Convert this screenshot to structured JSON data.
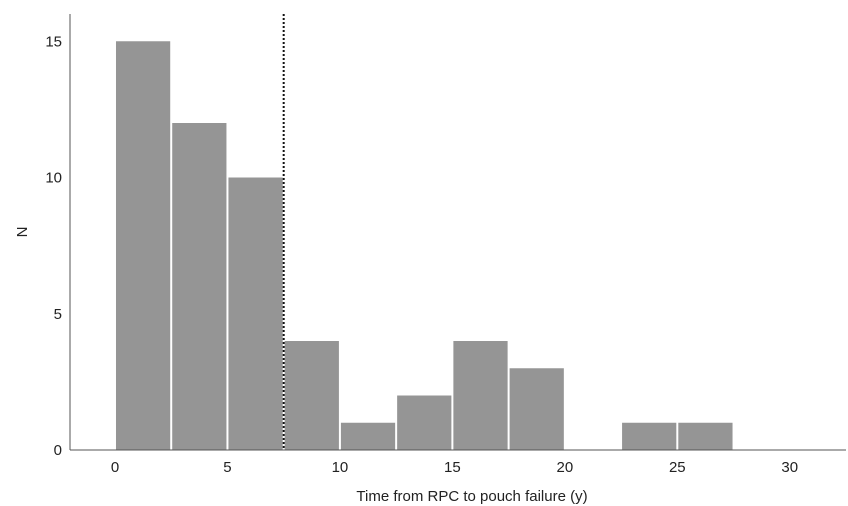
{
  "chart_data": {
    "type": "bar",
    "subtype": "histogram",
    "title": "",
    "xlabel": "Time from RPC to pouch failure (y)",
    "ylabel": "N",
    "bin_width": 2.5,
    "bins": [
      {
        "start": 0,
        "end": 2.5,
        "count": 15
      },
      {
        "start": 2.5,
        "end": 5,
        "count": 12
      },
      {
        "start": 5,
        "end": 7.5,
        "count": 10
      },
      {
        "start": 7.5,
        "end": 10,
        "count": 4
      },
      {
        "start": 10,
        "end": 12.5,
        "count": 1
      },
      {
        "start": 12.5,
        "end": 15,
        "count": 2
      },
      {
        "start": 15,
        "end": 17.5,
        "count": 4
      },
      {
        "start": 17.5,
        "end": 20,
        "count": 3
      },
      {
        "start": 20,
        "end": 22.5,
        "count": 0
      },
      {
        "start": 22.5,
        "end": 25,
        "count": 1
      },
      {
        "start": 25,
        "end": 27.5,
        "count": 1
      }
    ],
    "xlim": [
      -2,
      32.5
    ],
    "ylim": [
      0,
      16
    ],
    "xticks": [
      0,
      5,
      10,
      15,
      20,
      25,
      30
    ],
    "yticks": [
      0,
      5,
      10,
      15
    ],
    "reference_line": {
      "x": 7.5,
      "style": "dotted"
    },
    "bar_color": "#959595",
    "grid": false,
    "legend": "none"
  }
}
